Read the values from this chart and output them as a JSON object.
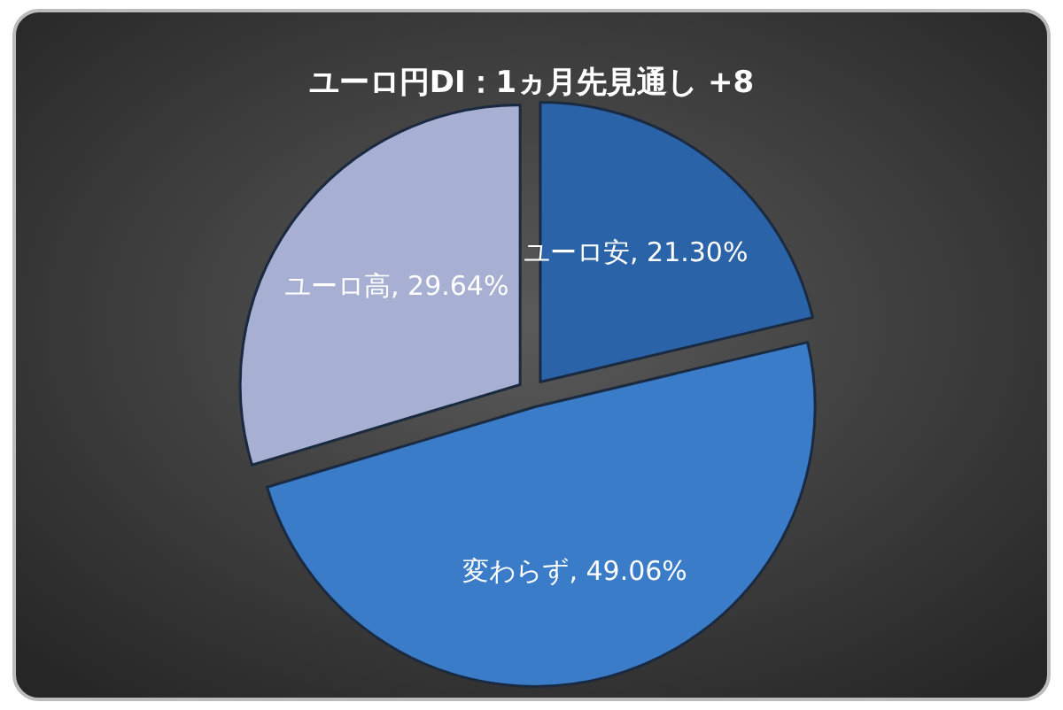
{
  "chart_data": {
    "type": "pie",
    "title": "ユーロ円DI：1ヵ月先見通し +8",
    "categories": [
      "ユーロ安",
      "変わらず",
      "ユーロ高"
    ],
    "values": [
      21.3,
      49.06,
      29.64
    ],
    "colors": [
      "#2b63a8",
      "#3b7cc8",
      "#a7b0d2"
    ],
    "value_labels": [
      "21.30%",
      "49.06%",
      "29.64%"
    ]
  }
}
